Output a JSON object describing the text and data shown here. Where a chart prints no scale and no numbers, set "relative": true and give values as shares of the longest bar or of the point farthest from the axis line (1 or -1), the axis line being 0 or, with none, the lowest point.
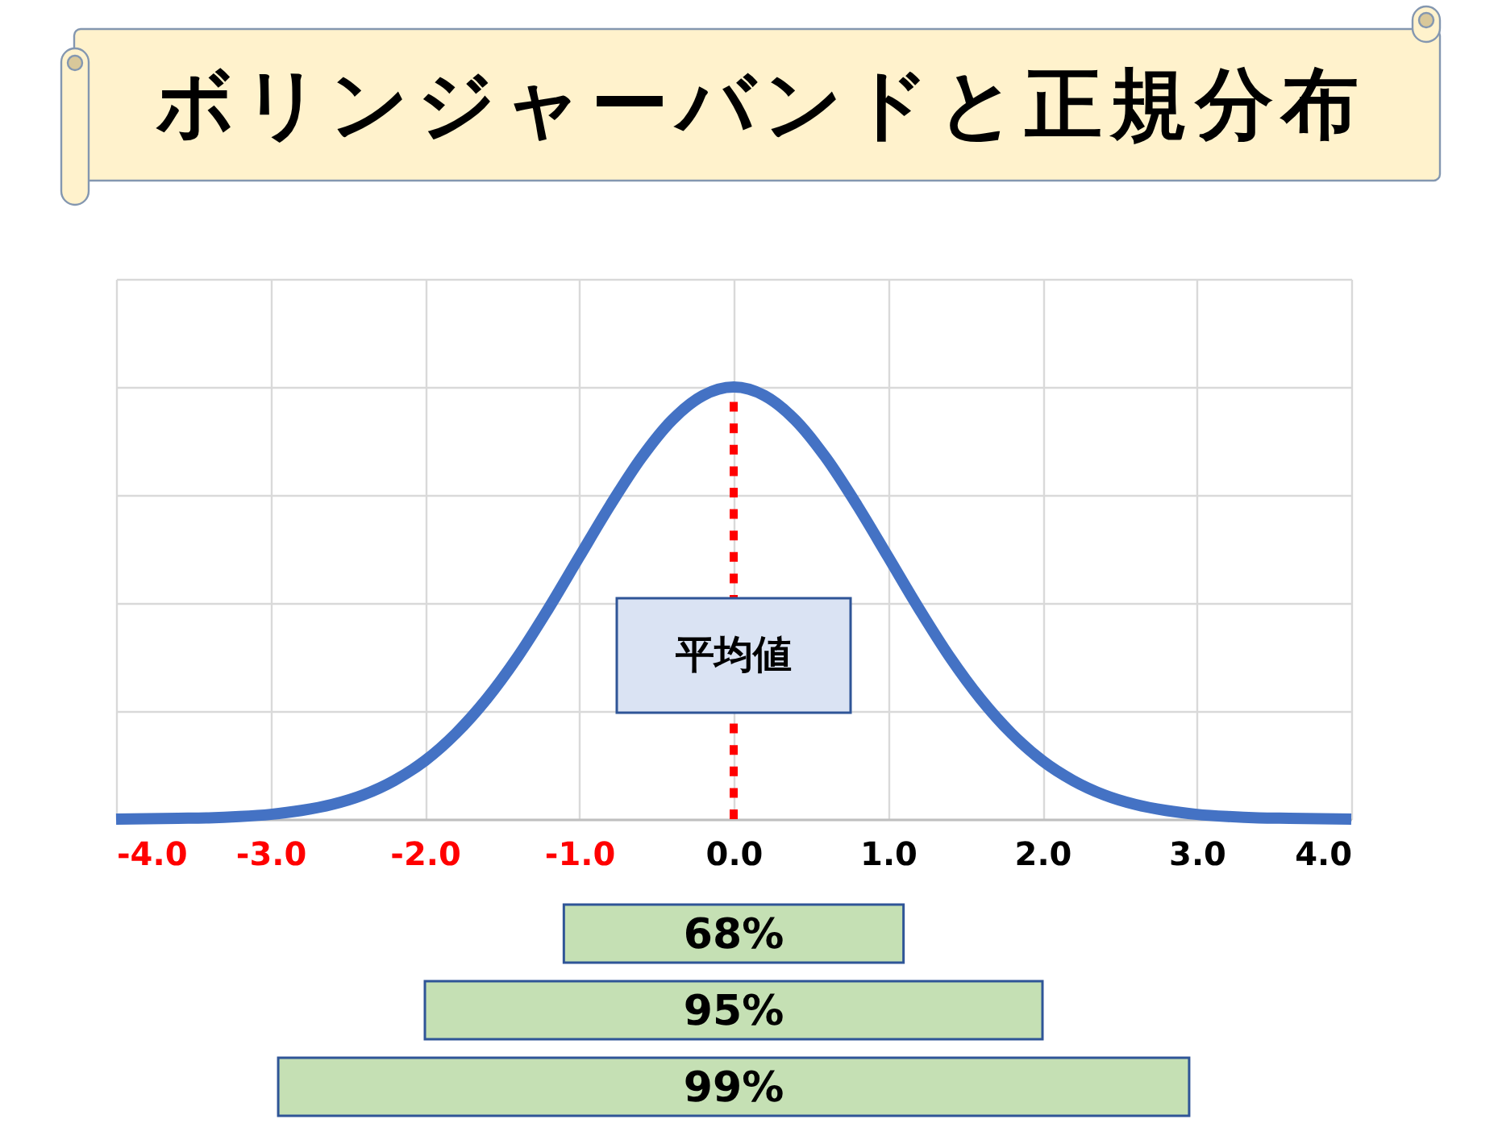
{
  "chart_data": [
    {
      "type": "line",
      "title": "ボリンジャーバンドと正規分布",
      "relative": true,
      "color": "#4472c4",
      "x": [
        -4,
        -3.8,
        -3.6,
        -3.4,
        -3.2,
        -3,
        -2.8,
        -2.6,
        -2.4,
        -2.2,
        -2,
        -1.8,
        -1.6,
        -1.4,
        -1.2,
        -1,
        -0.8,
        -0.6,
        -0.4,
        -0.2,
        0,
        0.2,
        0.4,
        0.6,
        0.8,
        1,
        1.2,
        1.4,
        1.6,
        1.8,
        2,
        2.2,
        2.4,
        2.6,
        2.8,
        3,
        3.2,
        3.4,
        3.6,
        3.8,
        4
      ],
      "values": [
        0,
        0.001,
        0.002,
        0.003,
        0.006,
        0.011,
        0.02,
        0.034,
        0.056,
        0.089,
        0.135,
        0.198,
        0.278,
        0.375,
        0.487,
        0.607,
        0.726,
        0.835,
        0.923,
        0.98,
        1,
        0.98,
        0.923,
        0.835,
        0.726,
        0.607,
        0.487,
        0.375,
        0.278,
        0.198,
        0.135,
        0.089,
        0.056,
        0.034,
        0.02,
        0.011,
        0.006,
        0.003,
        0.002,
        0.001,
        0
      ],
      "xlim": [
        -4,
        4
      ],
      "xticks": [
        {
          "value": -4,
          "label": "-4.0"
        },
        {
          "value": -3,
          "label": "-3.0"
        },
        {
          "value": -2,
          "label": "-2.0"
        },
        {
          "value": -1,
          "label": "-1.0"
        },
        {
          "value": 0,
          "label": "0.0"
        },
        {
          "value": 1,
          "label": "1.0"
        },
        {
          "value": 2,
          "label": "2.0"
        },
        {
          "value": 3,
          "label": "3.0"
        },
        {
          "value": 4,
          "label": "4.0"
        }
      ],
      "grid": true,
      "ref_lines": [
        {
          "axis": "x",
          "value": 0,
          "label": "平均値",
          "color": "#ff0000",
          "line_style": "dotted"
        }
      ]
    },
    {
      "type": "bar",
      "orientation": "horizontal",
      "categories": [
        "68%",
        "95%",
        "99%"
      ],
      "base": [
        -1.1,
        -2,
        -2.95
      ],
      "values": [
        2.2,
        4,
        5.9
      ],
      "color": "#c5e0b4",
      "xlim": [
        -4,
        4
      ],
      "tick_labels": false
    }
  ]
}
